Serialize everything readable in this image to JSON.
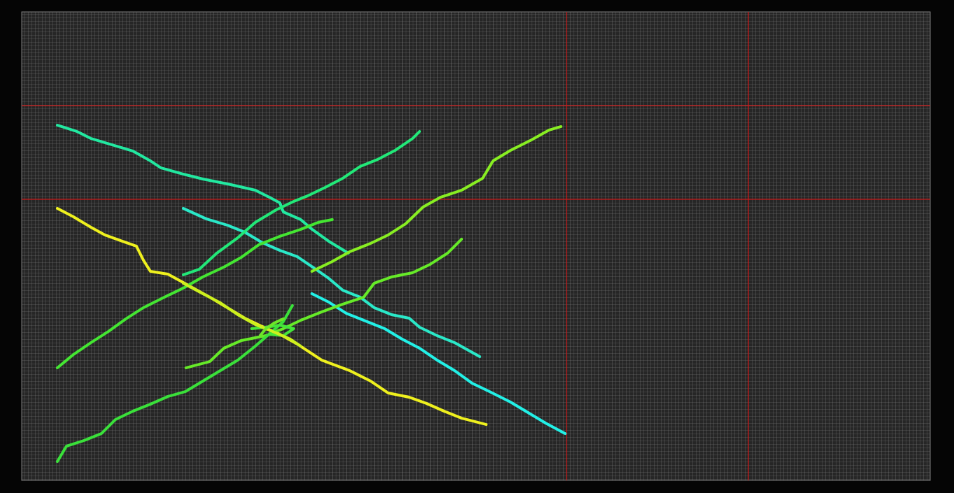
{
  "colors": {
    "background": "#050505",
    "grid_fill": "#262626",
    "grid_line": "#7d7d7d",
    "guide_line": "#cc1a1a"
  },
  "grid": {
    "cell_size": 5
  },
  "guides": {
    "vertical_count": 2,
    "horizontal_count": 2
  },
  "strokes": [
    {
      "id": "stroke-1",
      "color": "#22e8a0"
    },
    {
      "id": "stroke-2",
      "color": "#22e878"
    },
    {
      "id": "stroke-3",
      "color": "#88ee22"
    },
    {
      "id": "stroke-4",
      "color": "#ccf01e"
    },
    {
      "id": "stroke-5",
      "color": "#2ae8c8"
    },
    {
      "id": "stroke-6",
      "color": "#44e632"
    },
    {
      "id": "stroke-7",
      "color": "#66ea28"
    },
    {
      "id": "stroke-8",
      "color": "#22f0e6"
    },
    {
      "id": "stroke-9",
      "color": "#eef01e"
    },
    {
      "id": "stroke-10",
      "color": "#3ae03a"
    },
    {
      "id": "stroke-11",
      "color": "#44e43a"
    },
    {
      "id": "stroke-12",
      "color": "#6ce628"
    }
  ]
}
